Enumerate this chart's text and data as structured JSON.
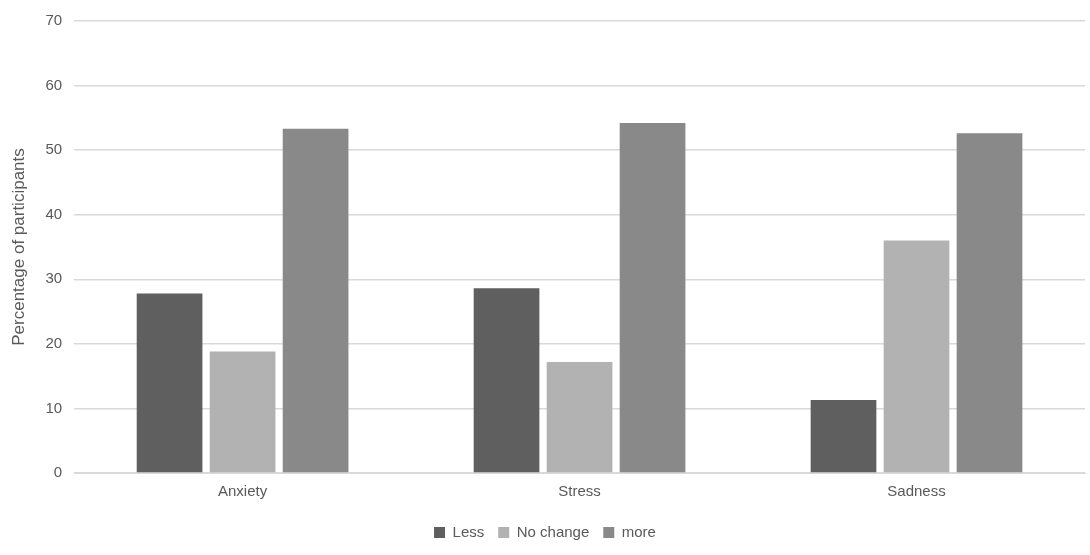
{
  "chart_data": {
    "type": "bar",
    "ylabel": "Percentage of participants",
    "categories": [
      "Anxiety",
      "Stress",
      "Sadness"
    ],
    "series": [
      {
        "name": "Less",
        "color": "#5f5f5f",
        "values": [
          27.8,
          28.6,
          11.3
        ]
      },
      {
        "name": "No change",
        "color": "#b2b2b2",
        "values": [
          18.8,
          17.2,
          36.0
        ]
      },
      {
        "name": "more",
        "color": "#898989",
        "values": [
          53.3,
          54.2,
          52.6
        ]
      }
    ],
    "ylim": [
      0,
      70
    ],
    "yticks": [
      0,
      10,
      20,
      30,
      40,
      50,
      60,
      70
    ],
    "grid": "y",
    "legend": "bottom"
  }
}
